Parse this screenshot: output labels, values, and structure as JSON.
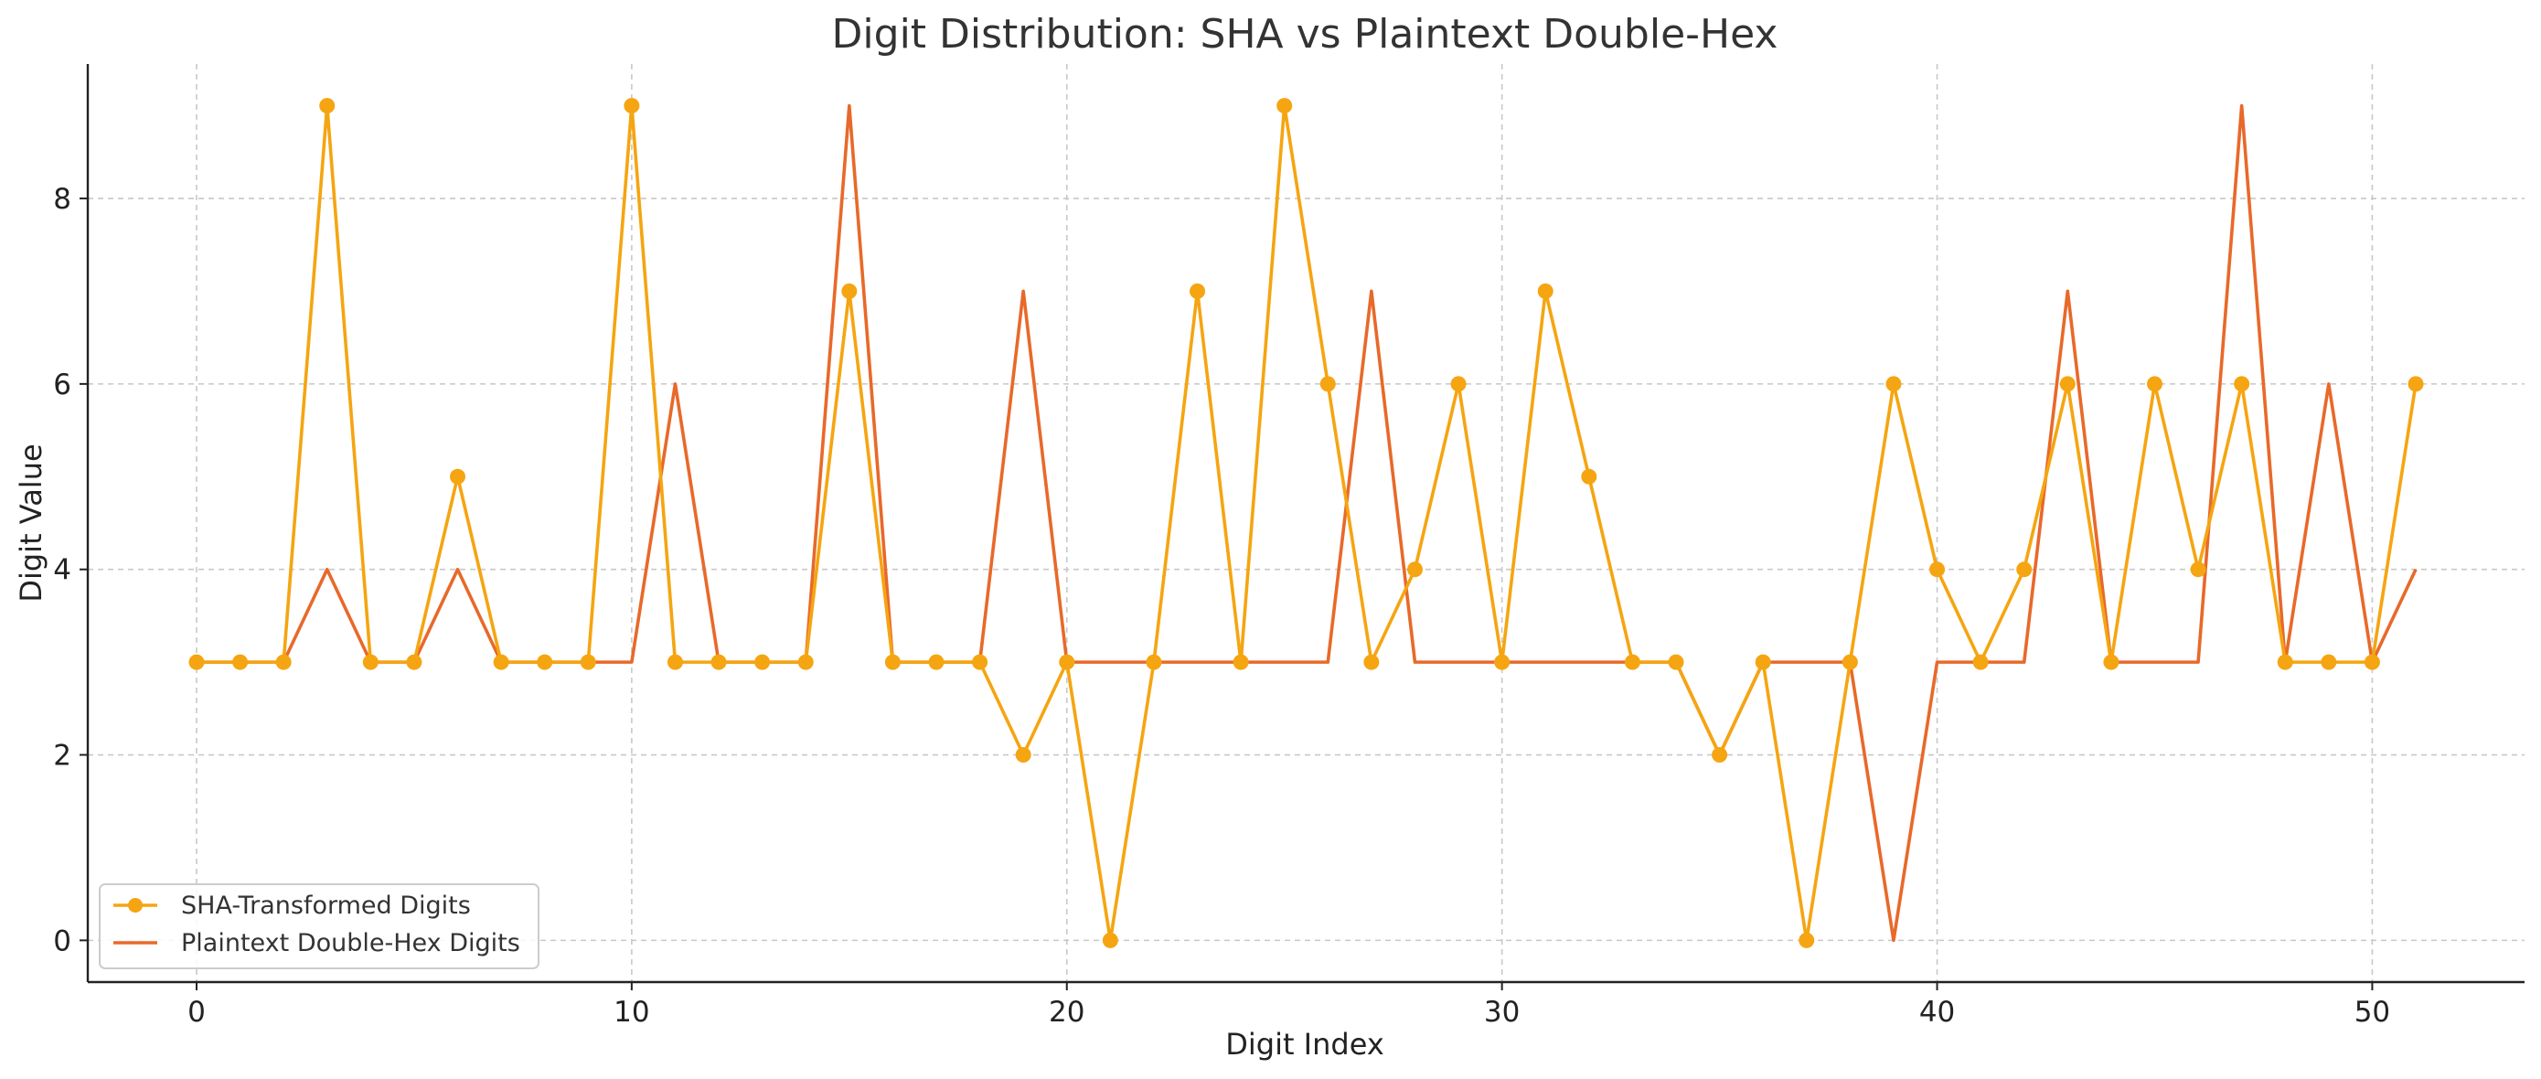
{
  "chart_data": {
    "type": "line",
    "title": "Digit Distribution: SHA vs Plaintext Double-Hex",
    "xlabel": "Digit Index",
    "ylabel": "Digit Value",
    "xlim": [
      -2.5,
      53.5
    ],
    "ylim": [
      -0.45,
      9.45
    ],
    "xticks": [
      0,
      10,
      20,
      30,
      40,
      50
    ],
    "yticks": [
      0,
      2,
      4,
      6,
      8
    ],
    "grid": true,
    "legend_position": "lower-left",
    "x": [
      0,
      1,
      2,
      3,
      4,
      5,
      6,
      7,
      8,
      9,
      10,
      11,
      12,
      13,
      14,
      15,
      16,
      17,
      18,
      19,
      20,
      21,
      22,
      23,
      24,
      25,
      26,
      27,
      28,
      29,
      30,
      31,
      32,
      33,
      34,
      35,
      36,
      37,
      38,
      39,
      40,
      41,
      42,
      43,
      44,
      45,
      46,
      47,
      48,
      49,
      50,
      51
    ],
    "series": [
      {
        "name": "SHA-Transformed Digits",
        "color": "#F5A511",
        "marker": "circle",
        "values": [
          3,
          3,
          3,
          9,
          3,
          3,
          5,
          3,
          3,
          3,
          9,
          3,
          3,
          3,
          3,
          7,
          3,
          3,
          3,
          2,
          3,
          0,
          3,
          7,
          3,
          9,
          6,
          3,
          4,
          6,
          3,
          7,
          5,
          3,
          3,
          2,
          3,
          0,
          3,
          6,
          4,
          3,
          4,
          6,
          3,
          6,
          4,
          6,
          3,
          3,
          3,
          6
        ]
      },
      {
        "name": "Plaintext Double-Hex Digits",
        "color": "#E8692A",
        "marker": "none",
        "values": [
          3,
          3,
          3,
          4,
          3,
          3,
          4,
          3,
          3,
          3,
          3,
          6,
          3,
          3,
          3,
          9,
          3,
          3,
          3,
          7,
          3,
          3,
          3,
          3,
          3,
          3,
          3,
          7,
          3,
          3,
          3,
          3,
          3,
          3,
          3,
          2,
          3,
          3,
          3,
          0,
          3,
          3,
          3,
          7,
          3,
          3,
          3,
          9,
          3,
          6,
          3,
          4
        ]
      }
    ]
  }
}
